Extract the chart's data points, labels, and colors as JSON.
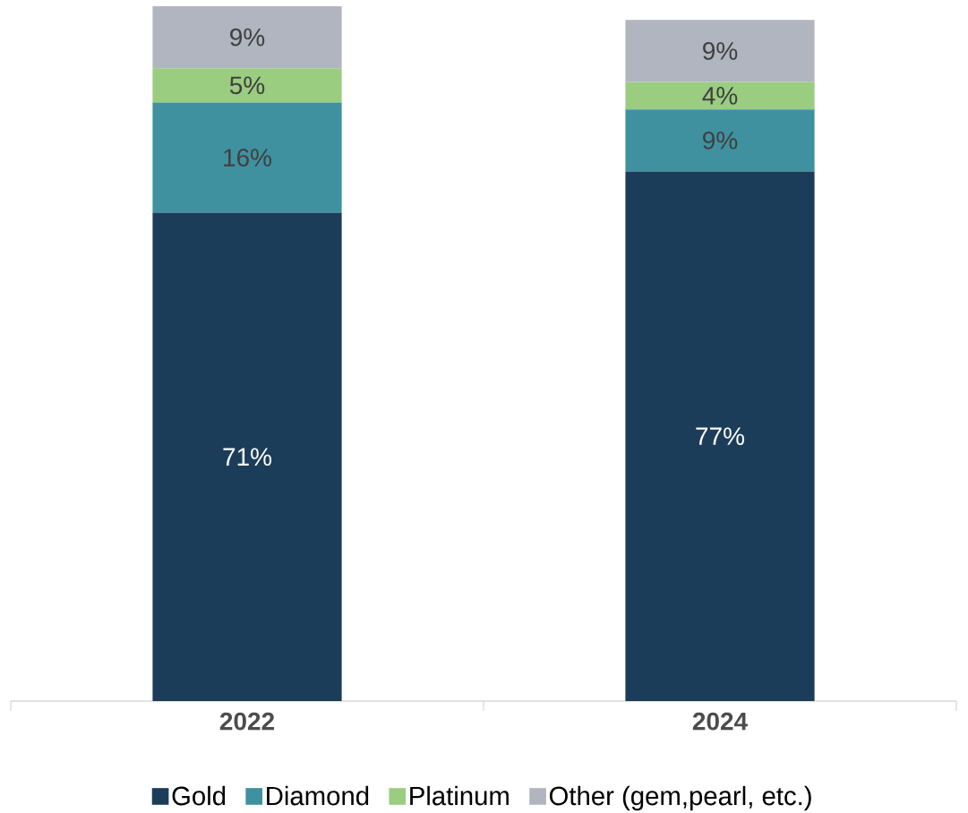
{
  "chart_data": {
    "type": "bar",
    "stacked": true,
    "categories": [
      "2022",
      "2024"
    ],
    "series": [
      {
        "name": "Gold",
        "color": "#1c3d5a",
        "values": [
          71,
          77
        ],
        "value_labels": [
          "71%",
          "77%"
        ]
      },
      {
        "name": "Diamond",
        "color": "#3f91a0",
        "values": [
          16,
          9
        ],
        "value_labels": [
          "16%",
          "9%"
        ]
      },
      {
        "name": "Platinum",
        "color": "#9acd80",
        "values": [
          5,
          4
        ],
        "value_labels": [
          "5%",
          "4%"
        ]
      },
      {
        "name": "Other (gem,pearl, etc.)",
        "color": "#b0b5bf",
        "values": [
          9,
          9
        ],
        "value_labels": [
          "9%",
          "9%"
        ]
      }
    ],
    "legend": "bottom"
  }
}
